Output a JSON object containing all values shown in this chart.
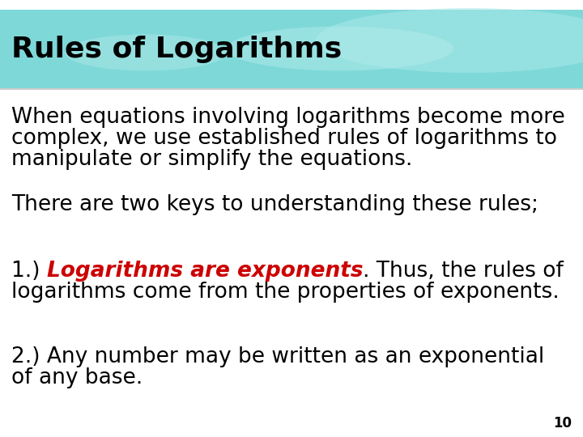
{
  "title": "Rules of Logarithms",
  "title_color": "#000000",
  "title_bg_top": "#FFFFFF",
  "title_bg_teal": "#7ED8D8",
  "body_bg_color": "#FFFFFF",
  "body_text_color": "#000000",
  "para1_line1": "When equations involving logarithms become more",
  "para1_line2": "complex, we use established rules of logarithms to",
  "para1_line3": "manipulate or simplify the equations.",
  "para2": "There are two keys to understanding these rules;",
  "para3_prefix": "1.) ",
  "para3_bold_italic": "Logarithms are exponents",
  "para3_bold_italic_color": "#CC0000",
  "para3_suffix_line1": ". Thus, the rules of",
  "para3_line2": "logarithms come from the properties of exponents.",
  "para4_line1": "2.) Any number may be written as an exponential",
  "para4_line2": "of any base.",
  "page_number": "10",
  "title_font_size": 26,
  "body_font_size": 19,
  "page_num_font_size": 12
}
